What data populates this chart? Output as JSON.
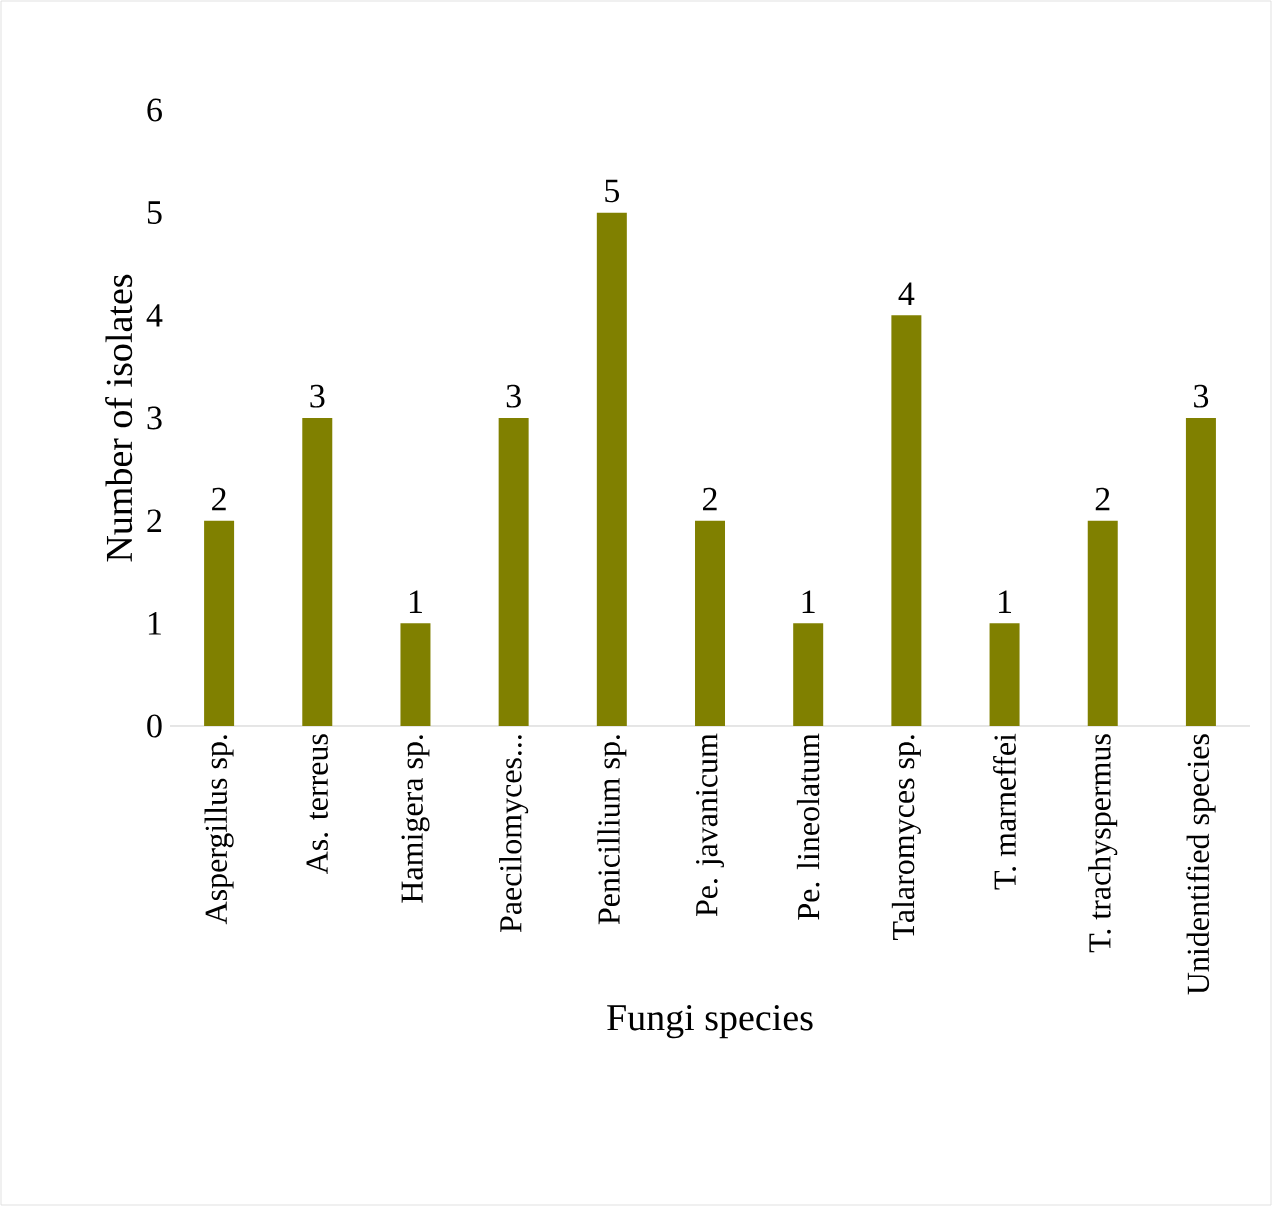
{
  "chart_data": {
    "type": "bar",
    "xlabel": "Fungi species",
    "ylabel": "Number of isolates",
    "categories": [
      "Aspergillus sp.",
      "As. terreus",
      "Hamigera sp.",
      "Paecilomyces...",
      "Penicillium sp.",
      "Pe. javanicum",
      "Pe. lineolatum",
      "Talaromyces sp.",
      "T. marneffei",
      "T. trachyspermus",
      "Unidentified species"
    ],
    "values": [
      2,
      3,
      1,
      3,
      5,
      2,
      1,
      4,
      1,
      2,
      3
    ],
    "color": "#808000",
    "ylim": [
      0,
      6
    ],
    "yticks": [
      0,
      1,
      2,
      3,
      4,
      5,
      6
    ],
    "data_labels": true
  }
}
